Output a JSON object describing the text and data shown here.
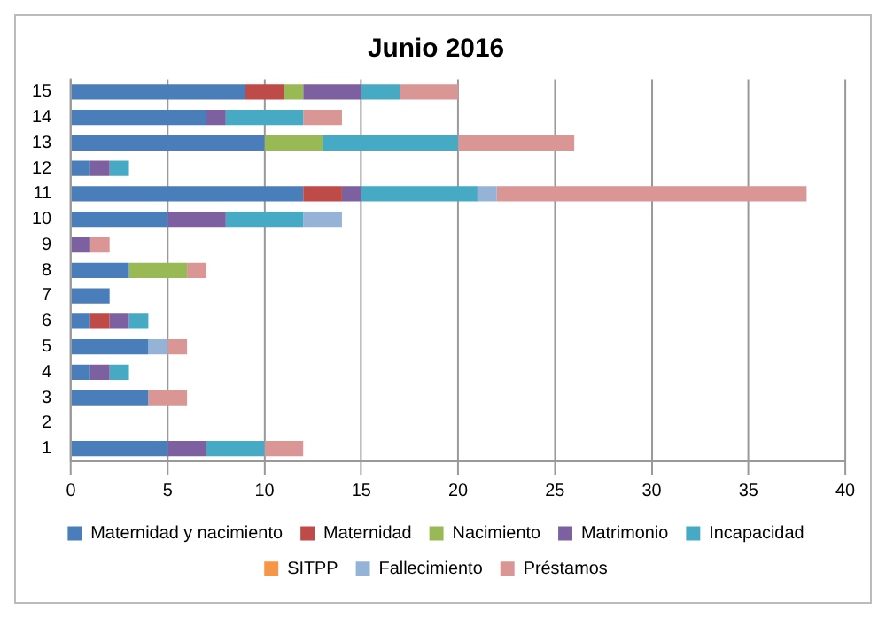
{
  "chart_data": {
    "type": "bar",
    "orientation": "horizontal",
    "stacked": true,
    "title": "Junio 2016",
    "categories": [
      "15",
      "14",
      "13",
      "12",
      "11",
      "10",
      "9",
      "8",
      "7",
      "6",
      "5",
      "4",
      "3",
      "2",
      "1"
    ],
    "series": [
      {
        "name": "Maternidad y nacimiento",
        "color": "#4a7ebb",
        "values": [
          9,
          7,
          10,
          1,
          12,
          5,
          0,
          3,
          2,
          1,
          4,
          1,
          4,
          0,
          5
        ]
      },
      {
        "name": "Maternidad",
        "color": "#be4b48",
        "values": [
          2,
          0,
          0,
          0,
          2,
          0,
          0,
          0,
          0,
          1,
          0,
          0,
          0,
          0,
          0
        ]
      },
      {
        "name": "Nacimiento",
        "color": "#98b954",
        "values": [
          1,
          0,
          3,
          0,
          0,
          0,
          0,
          3,
          0,
          0,
          0,
          0,
          0,
          0,
          0
        ]
      },
      {
        "name": "Matrimonio",
        "color": "#7d60a0",
        "values": [
          3,
          1,
          0,
          1,
          1,
          3,
          1,
          0,
          0,
          1,
          0,
          1,
          0,
          0,
          2
        ]
      },
      {
        "name": "Incapacidad",
        "color": "#46aac5",
        "values": [
          2,
          4,
          7,
          1,
          6,
          4,
          0,
          0,
          0,
          1,
          0,
          1,
          0,
          0,
          3
        ]
      },
      {
        "name": "SITPP",
        "color": "#f79646",
        "values": [
          0,
          0,
          0,
          0,
          0,
          0,
          0,
          0,
          0,
          0,
          0,
          0,
          0,
          0,
          0
        ]
      },
      {
        "name": "Fallecimiento",
        "color": "#95b3d7",
        "values": [
          0,
          0,
          0,
          0,
          1,
          2,
          0,
          0,
          0,
          0,
          1,
          0,
          0,
          0,
          0
        ]
      },
      {
        "name": "Préstamos",
        "color": "#d99694",
        "values": [
          3,
          2,
          6,
          0,
          16,
          0,
          1,
          1,
          0,
          0,
          1,
          0,
          2,
          0,
          2
        ]
      }
    ],
    "xlim": [
      0,
      40
    ],
    "xticks": [
      0,
      5,
      10,
      15,
      20,
      25,
      30,
      35,
      40
    ],
    "grid": "x",
    "legend": "bottom"
  }
}
